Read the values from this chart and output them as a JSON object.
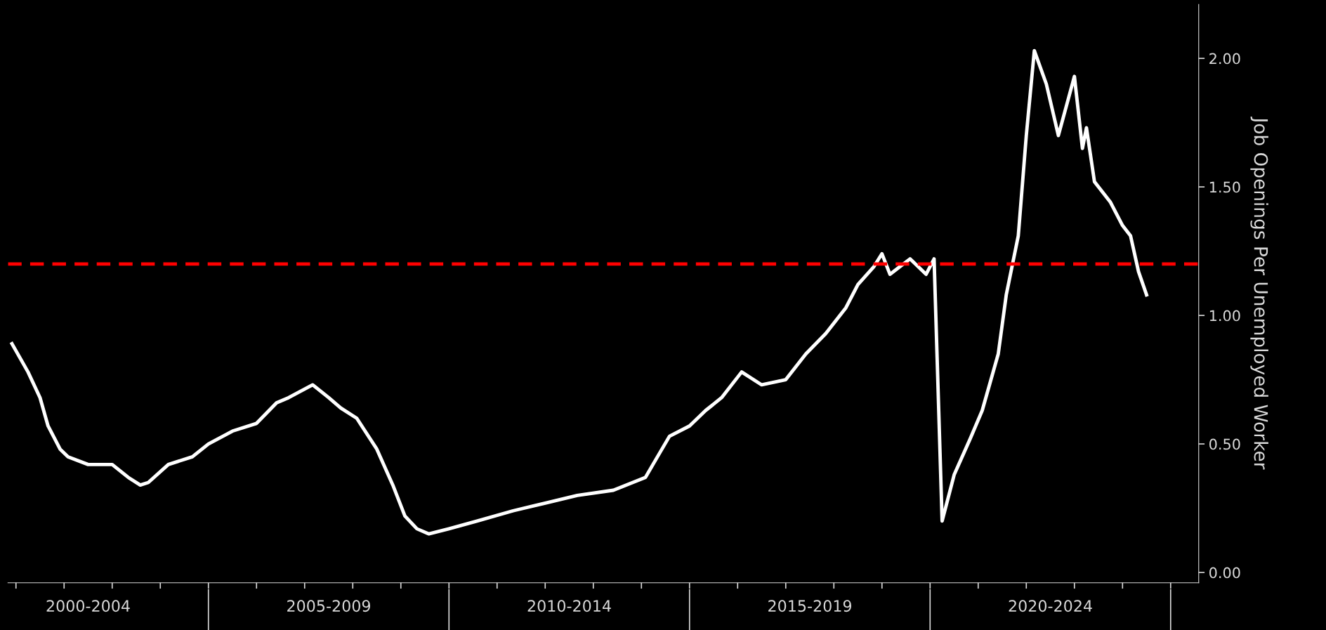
{
  "chart_data": {
    "type": "line",
    "ylabel": "Job Openings Per Unemployed Worker",
    "series": [
      {
        "color": "#ffffff",
        "x": [
          "2000-12",
          "2001-04",
          "2001-07",
          "2001-09",
          "2001-12",
          "2002-02",
          "2002-07",
          "2003-01",
          "2003-05",
          "2003-08",
          "2003-10",
          "2004-03",
          "2004-09",
          "2005-01",
          "2005-07",
          "2006-01",
          "2006-06",
          "2006-09",
          "2007-03",
          "2007-07",
          "2007-10",
          "2008-02",
          "2008-07",
          "2008-11",
          "2009-02",
          "2009-05",
          "2009-08",
          "2010-01",
          "2010-08",
          "2011-05",
          "2012-01",
          "2012-09",
          "2013-06",
          "2014-02",
          "2014-05",
          "2014-08",
          "2015-01",
          "2015-05",
          "2015-09",
          "2016-02",
          "2016-07",
          "2017-01",
          "2017-06",
          "2017-11",
          "2018-04",
          "2018-07",
          "2018-11",
          "2019-01",
          "2019-03",
          "2019-08",
          "2019-12",
          "2020-02",
          "2020-04",
          "2020-07",
          "2020-11",
          "2021-02",
          "2021-06",
          "2021-08",
          "2021-11",
          "2022-01",
          "2022-03",
          "2022-06",
          "2022-09",
          "2023-01",
          "2023-03",
          "2023-04",
          "2023-06",
          "2023-10",
          "2024-01",
          "2024-03",
          "2024-05",
          "2024-07"
        ],
        "values": [
          0.89,
          0.78,
          0.68,
          0.57,
          0.48,
          0.45,
          0.42,
          0.42,
          0.37,
          0.34,
          0.35,
          0.42,
          0.45,
          0.5,
          0.55,
          0.58,
          0.66,
          0.68,
          0.73,
          0.68,
          0.64,
          0.6,
          0.48,
          0.34,
          0.22,
          0.17,
          0.15,
          0.17,
          0.2,
          0.24,
          0.27,
          0.3,
          0.32,
          0.37,
          0.45,
          0.53,
          0.57,
          0.63,
          0.68,
          0.78,
          0.73,
          0.75,
          0.85,
          0.93,
          1.03,
          1.12,
          1.19,
          1.24,
          1.16,
          1.22,
          1.16,
          1.22,
          0.2,
          0.38,
          0.52,
          0.63,
          0.85,
          1.08,
          1.31,
          1.7,
          2.03,
          1.9,
          1.7,
          1.93,
          1.65,
          1.73,
          1.52,
          1.44,
          1.35,
          1.31,
          1.17,
          1.08
        ]
      }
    ],
    "xlim": [
      "2000-11",
      "2025-08"
    ],
    "xticks": [
      {
        "value": "2001",
        "label": null
      },
      {
        "value": "2002",
        "label": null
      },
      {
        "value": "2002-07",
        "label": "2000-2004"
      },
      {
        "value": "2003",
        "label": null
      },
      {
        "value": "2004",
        "label": null
      },
      {
        "value": "2005",
        "label": null
      },
      {
        "value": "2006",
        "label": null
      },
      {
        "value": "2007",
        "label": null
      },
      {
        "value": "2007-07",
        "label": "2005-2009"
      },
      {
        "value": "2008",
        "label": null
      },
      {
        "value": "2009",
        "label": null
      },
      {
        "value": "2010",
        "label": null
      },
      {
        "value": "2011",
        "label": null
      },
      {
        "value": "2012",
        "label": null
      },
      {
        "value": "2012-07",
        "label": "2010-2014"
      },
      {
        "value": "2013",
        "label": null
      },
      {
        "value": "2014",
        "label": null
      },
      {
        "value": "2015",
        "label": null
      },
      {
        "value": "2016",
        "label": null
      },
      {
        "value": "2017",
        "label": null
      },
      {
        "value": "2017-07",
        "label": "2015-2019"
      },
      {
        "value": "2018",
        "label": null
      },
      {
        "value": "2019",
        "label": null
      },
      {
        "value": "2020",
        "label": null
      },
      {
        "value": "2021",
        "label": null
      },
      {
        "value": "2022",
        "label": null
      },
      {
        "value": "2022-07",
        "label": "2020-2024"
      },
      {
        "value": "2023",
        "label": null
      },
      {
        "value": "2024",
        "label": null
      },
      {
        "value": "2025",
        "label": null
      }
    ],
    "ylim": [
      -0.04,
      2.21
    ],
    "yticks": [
      {
        "value": 0,
        "label": "0.00"
      },
      {
        "value": 0.5,
        "label": "0.50"
      },
      {
        "value": 1,
        "label": "1.00"
      },
      {
        "value": 1.5,
        "label": "1.50"
      },
      {
        "value": 2,
        "label": "2.00"
      }
    ],
    "ref_lines": [
      {
        "axis": "y",
        "value": 1.2,
        "label": null,
        "color": "#ff0000",
        "line_style": "dashed"
      }
    ],
    "grid": false,
    "legend": false
  }
}
